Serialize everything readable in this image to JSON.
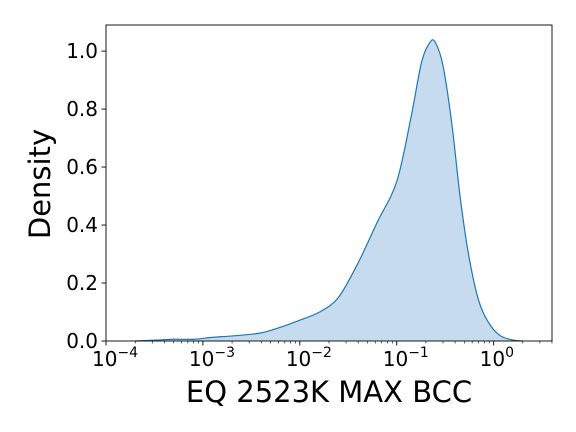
{
  "chart_data": {
    "type": "area",
    "title": "",
    "xlabel": "EQ 2523K MAX BCC",
    "ylabel": "Density",
    "xscale": "log",
    "xlim": [
      0.0001,
      4
    ],
    "ylim": [
      0,
      1.09
    ],
    "grid": false,
    "legend": "none",
    "fill_color": "#c6dbed",
    "line_color": "#1f77b4",
    "x_ticks": [
      {
        "value": 0.0001,
        "base": "10",
        "exp": "−4"
      },
      {
        "value": 0.001,
        "base": "10",
        "exp": "−3"
      },
      {
        "value": 0.01,
        "base": "10",
        "exp": "−2"
      },
      {
        "value": 0.1,
        "base": "10",
        "exp": "−1"
      },
      {
        "value": 1,
        "base": "10",
        "exp": "0"
      }
    ],
    "y_ticks": [
      {
        "value": 0.0,
        "label": "0.0"
      },
      {
        "value": 0.2,
        "label": "0.2"
      },
      {
        "value": 0.4,
        "label": "0.4"
      },
      {
        "value": 0.6,
        "label": "0.6"
      },
      {
        "value": 0.8,
        "label": "0.8"
      },
      {
        "value": 1.0,
        "label": "1.0"
      }
    ],
    "x": [
      0.0002,
      0.00032,
      0.0005,
      0.0008,
      0.0012,
      0.0016,
      0.0025,
      0.004,
      0.006,
      0.01,
      0.016,
      0.025,
      0.04,
      0.063,
      0.1,
      0.14,
      0.18,
      0.22,
      0.25,
      0.3,
      0.37,
      0.45,
      0.55,
      0.7,
      0.9,
      1.15,
      1.5,
      2.0
    ],
    "y": [
      0.0,
      0.003,
      0.006,
      0.006,
      0.012,
      0.015,
      0.02,
      0.028,
      0.045,
      0.072,
      0.1,
      0.15,
      0.27,
      0.41,
      0.55,
      0.77,
      0.96,
      1.03,
      1.03,
      0.95,
      0.75,
      0.5,
      0.3,
      0.14,
      0.06,
      0.02,
      0.005,
      0.0
    ]
  }
}
